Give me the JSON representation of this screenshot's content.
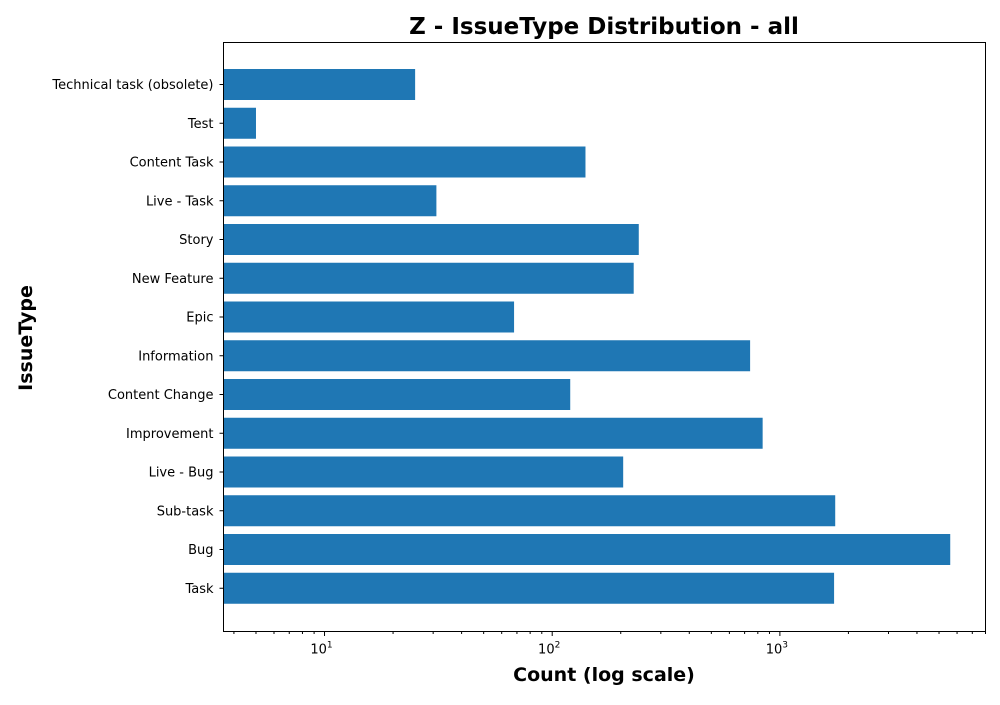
{
  "chart_data": {
    "type": "bar",
    "orientation": "horizontal",
    "title": "Z - IssueType Distribution - all",
    "xlabel": "Count (log scale)",
    "ylabel": "IssueType",
    "x_scale": "log",
    "xlim": [
      3.6,
      8000
    ],
    "x_ticks": [
      {
        "value": 10,
        "base": "10",
        "exponent": "1"
      },
      {
        "value": 100,
        "base": "10",
        "exponent": "2"
      },
      {
        "value": 1000,
        "base": "10",
        "exponent": "3"
      }
    ],
    "grid": false,
    "bar_color": "#1f77b4",
    "categories": [
      "Technical task (obsolete)",
      "Test",
      "Content Task",
      "Live - Task",
      "Story",
      "New Feature",
      "Epic",
      "Information",
      "Content Change",
      "Improvement",
      "Live - Bug",
      "Sub-task",
      "Bug",
      "Task"
    ],
    "values": [
      25,
      5,
      140,
      31,
      240,
      228,
      68,
      740,
      120,
      840,
      205,
      1750,
      5600,
      1730
    ]
  }
}
